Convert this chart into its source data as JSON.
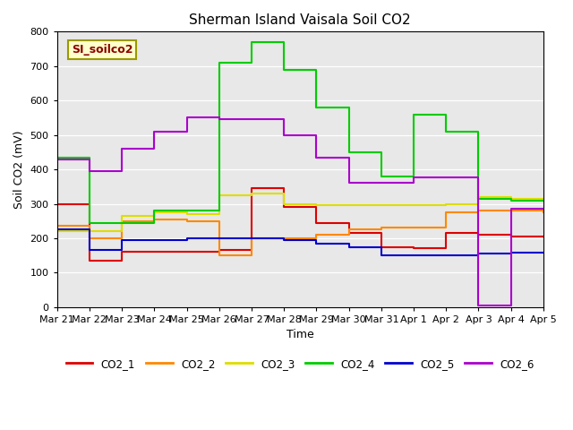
{
  "title": "Sherman Island Vaisala Soil CO2",
  "ylabel": "Soil CO2 (mV)",
  "xlabel": "Time",
  "ylim": [
    0,
    800
  ],
  "yticks": [
    0,
    100,
    200,
    300,
    400,
    500,
    600,
    700,
    800
  ],
  "xtick_labels": [
    "Mar 21",
    "Mar 22",
    "Mar 23",
    "Mar 24",
    "Mar 25",
    "Mar 26",
    "Mar 27",
    "Mar 28",
    "Mar 29",
    "Mar 30",
    "Mar 31",
    "Apr 1",
    "Apr 2",
    "Apr 3",
    "Apr 4",
    "Apr 5"
  ],
  "background_color": "#e8e8e8",
  "label_box": "SI_soilco2",
  "series": {
    "CO2_1": {
      "color": "#dd0000",
      "x": [
        0,
        1,
        2,
        3,
        4,
        5,
        6,
        7,
        8,
        9,
        10,
        11,
        12,
        13,
        14,
        15
      ],
      "y": [
        300,
        135,
        160,
        160,
        160,
        165,
        345,
        290,
        245,
        215,
        175,
        170,
        215,
        210,
        205,
        205
      ]
    },
    "CO2_2": {
      "color": "#ff8800",
      "x": [
        0,
        1,
        2,
        3,
        4,
        5,
        6,
        7,
        8,
        9,
        10,
        11,
        12,
        13,
        14,
        15
      ],
      "y": [
        235,
        200,
        250,
        255,
        250,
        150,
        200,
        200,
        210,
        225,
        230,
        230,
        275,
        280,
        280,
        275
      ]
    },
    "CO2_3": {
      "color": "#dddd00",
      "x": [
        0,
        1,
        2,
        3,
        4,
        5,
        6,
        7,
        8,
        9,
        10,
        11,
        12,
        13,
        14,
        15
      ],
      "y": [
        220,
        220,
        265,
        275,
        270,
        325,
        330,
        300,
        295,
        295,
        295,
        295,
        300,
        320,
        315,
        310
      ]
    },
    "CO2_4": {
      "color": "#00cc00",
      "x": [
        0,
        1,
        2,
        3,
        4,
        5,
        6,
        7,
        8,
        9,
        10,
        11,
        12,
        13,
        14,
        15
      ],
      "y": [
        435,
        245,
        245,
        280,
        280,
        710,
        770,
        690,
        580,
        450,
        380,
        560,
        510,
        315,
        310,
        310
      ]
    },
    "CO2_5": {
      "color": "#0000cc",
      "x": [
        0,
        1,
        2,
        3,
        4,
        5,
        6,
        7,
        8,
        9,
        10,
        11,
        12,
        13,
        14,
        15
      ],
      "y": [
        225,
        165,
        195,
        195,
        200,
        200,
        200,
        195,
        185,
        175,
        150,
        150,
        150,
        155,
        158,
        158
      ]
    },
    "CO2_6": {
      "color": "#aa00cc",
      "x": [
        0,
        1,
        2,
        3,
        4,
        5,
        6,
        7,
        8,
        9,
        10,
        11,
        12,
        13,
        14,
        15
      ],
      "y": [
        430,
        395,
        460,
        510,
        550,
        545,
        545,
        500,
        435,
        360,
        360,
        378,
        378,
        5,
        285,
        285
      ]
    }
  },
  "legend_entries": [
    "CO2_1",
    "CO2_2",
    "CO2_3",
    "CO2_4",
    "CO2_5",
    "CO2_6"
  ],
  "legend_colors": [
    "#dd0000",
    "#ff8800",
    "#dddd00",
    "#00cc00",
    "#0000cc",
    "#aa00cc"
  ]
}
